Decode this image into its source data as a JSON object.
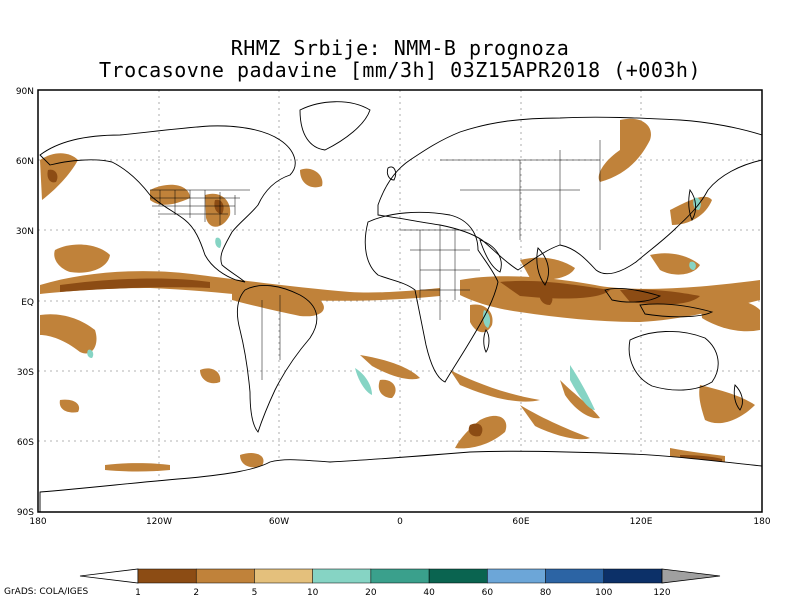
{
  "title": {
    "line1": "RHMZ Srbije: NMM-B prognoza",
    "line2": "Trocasovne padavine [mm/3h] 03Z15APR2018 (+003h)"
  },
  "axes": {
    "lat_labels": [
      "90N",
      "60N",
      "30N",
      "EQ",
      "30S",
      "60S",
      "90S"
    ],
    "lon_labels": [
      "180",
      "120W",
      "60W",
      "0",
      "60E",
      "120E",
      "180"
    ]
  },
  "colorbar": {
    "labels": [
      "1",
      "2",
      "5",
      "10",
      "20",
      "40",
      "60",
      "80",
      "100",
      "120"
    ],
    "colors": [
      "#8c4c14",
      "#c0823a",
      "#e4c07c",
      "#86d4c4",
      "#3aa08c",
      "#0a6450",
      "#6ca6d8",
      "#2c64a4",
      "#0c3068"
    ],
    "under_color": "#ffffff",
    "over_color": "#a0a0a0"
  },
  "credit": "GrADS: COLA/IGES"
}
